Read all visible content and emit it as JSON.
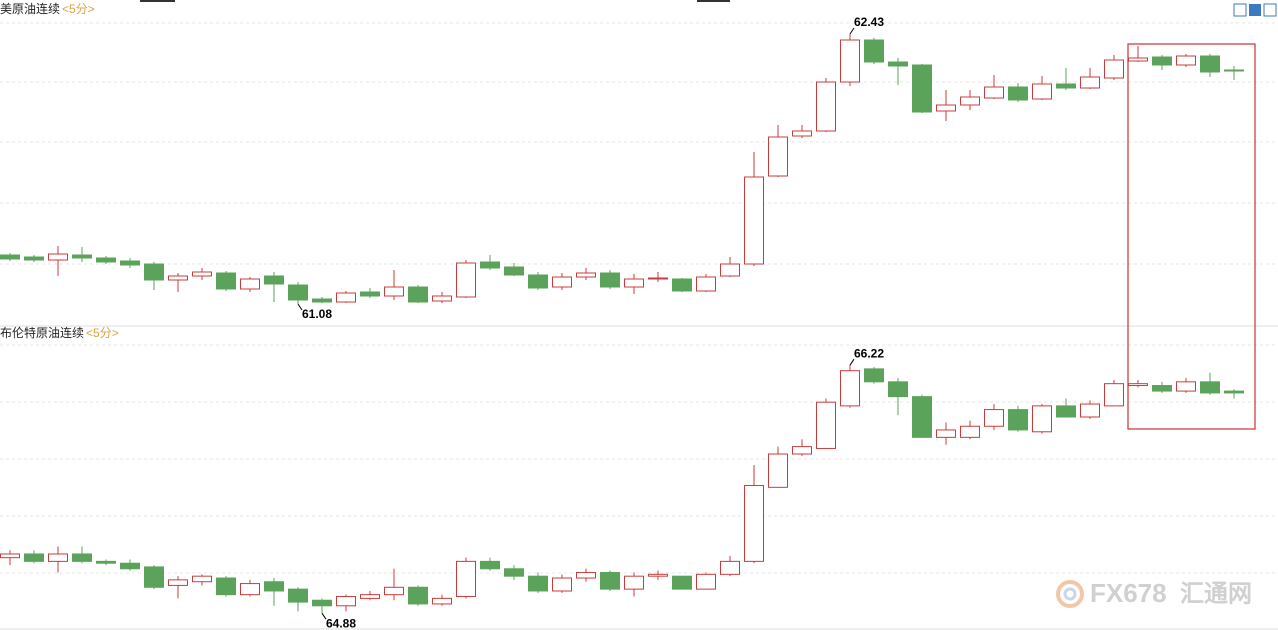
{
  "chart_data": [
    {
      "type": "candlestick",
      "title": "美原油连续",
      "period": "<5分>",
      "up_color": "#c83c3c",
      "down_color": "#5ba35b",
      "ylim": [
        60.975,
        62.6
      ],
      "high_label": 62.43,
      "low_label": 61.08,
      "open": [
        61.325,
        61.315,
        61.3,
        61.325,
        61.31,
        61.295,
        61.28,
        61.2,
        61.22,
        61.235,
        61.155,
        61.22,
        61.175,
        61.105,
        61.09,
        61.14,
        61.12,
        61.165,
        61.095,
        61.115,
        61.29,
        61.265,
        61.225,
        61.165,
        61.215,
        61.235,
        61.165,
        61.205,
        61.205,
        61.145,
        61.22,
        61.28,
        61.72,
        61.92,
        61.945,
        62.19,
        62.4,
        62.29,
        62.275,
        62.045,
        62.075,
        62.11,
        62.165,
        62.105,
        62.18,
        62.16,
        62.21,
        62.295,
        62.315,
        62.275,
        62.32,
        62.25
      ],
      "high": [
        61.335,
        61.325,
        61.37,
        61.365,
        61.32,
        61.31,
        61.29,
        61.235,
        61.26,
        61.245,
        61.215,
        61.24,
        61.19,
        61.115,
        61.145,
        61.16,
        61.25,
        61.175,
        61.14,
        61.3,
        61.325,
        61.285,
        61.24,
        61.235,
        61.26,
        61.25,
        61.23,
        61.24,
        61.21,
        61.23,
        61.315,
        61.84,
        61.975,
        61.975,
        62.21,
        62.43,
        62.41,
        62.31,
        62.28,
        62.15,
        62.15,
        62.225,
        62.185,
        62.22,
        62.26,
        62.26,
        62.325,
        62.37,
        62.325,
        62.33,
        62.33,
        62.27
      ],
      "low": [
        61.295,
        61.29,
        61.22,
        61.29,
        61.28,
        61.26,
        61.15,
        61.14,
        61.2,
        61.145,
        61.14,
        61.09,
        61.08,
        61.085,
        61.085,
        61.11,
        61.1,
        61.085,
        61.085,
        61.11,
        61.25,
        61.22,
        61.15,
        61.15,
        61.2,
        61.155,
        61.13,
        61.19,
        61.14,
        61.14,
        61.215,
        61.27,
        61.715,
        61.91,
        61.94,
        62.17,
        62.28,
        62.175,
        62.035,
        61.995,
        62.05,
        62.105,
        62.09,
        62.1,
        62.15,
        62.155,
        62.2,
        62.29,
        62.25,
        62.265,
        62.215,
        62.2
      ],
      "close": [
        61.305,
        61.3,
        61.33,
        61.31,
        61.29,
        61.275,
        61.2,
        61.22,
        61.24,
        61.155,
        61.205,
        61.18,
        61.1,
        61.09,
        61.135,
        61.12,
        61.165,
        61.09,
        61.12,
        61.285,
        61.26,
        61.225,
        61.16,
        61.215,
        61.235,
        61.165,
        61.205,
        61.21,
        61.145,
        61.215,
        61.28,
        61.715,
        61.915,
        61.945,
        62.19,
        62.4,
        62.29,
        62.27,
        62.04,
        62.075,
        62.115,
        62.165,
        62.1,
        62.18,
        62.16,
        62.215,
        62.3,
        62.31,
        62.275,
        62.32,
        62.24,
        62.245
      ]
    },
    {
      "type": "candlestick",
      "title": "布伦特原油连续",
      "period": "<5分>",
      "up_color": "#c83c3c",
      "down_color": "#5ba35b",
      "ylim": [
        64.8,
        66.41
      ],
      "high_label": 66.22,
      "low_label": 64.88,
      "open": [
        65.18,
        65.2,
        65.16,
        65.2,
        65.16,
        65.15,
        65.13,
        65.03,
        65.05,
        65.07,
        64.98,
        65.05,
        65.01,
        64.95,
        64.92,
        64.96,
        64.98,
        65.02,
        64.93,
        64.97,
        65.16,
        65.12,
        65.08,
        65.0,
        65.07,
        65.1,
        65.01,
        65.08,
        65.08,
        65.01,
        65.09,
        65.16,
        65.56,
        65.74,
        65.77,
        66.0,
        66.2,
        66.13,
        66.05,
        65.83,
        65.83,
        65.89,
        65.98,
        65.86,
        66.0,
        65.94,
        66.0,
        66.11,
        66.11,
        66.08,
        66.13,
        66.08
      ],
      "high": [
        65.22,
        65.22,
        65.24,
        65.24,
        65.17,
        65.17,
        65.14,
        65.08,
        65.09,
        65.08,
        65.06,
        65.07,
        65.02,
        64.96,
        64.98,
        65.0,
        65.12,
        65.03,
        64.98,
        65.18,
        65.18,
        65.14,
        65.1,
        65.09,
        65.12,
        65.11,
        65.1,
        65.11,
        65.08,
        65.1,
        65.19,
        65.68,
        65.78,
        65.82,
        66.04,
        66.22,
        66.21,
        66.15,
        66.06,
        65.91,
        65.92,
        66.01,
        66.0,
        66.01,
        66.04,
        66.03,
        66.14,
        66.14,
        66.13,
        66.15,
        66.18,
        66.09
      ],
      "low": [
        65.14,
        65.15,
        65.1,
        65.15,
        65.14,
        65.11,
        65.01,
        64.96,
        65.03,
        64.97,
        64.97,
        64.92,
        64.89,
        64.88,
        64.89,
        64.95,
        64.95,
        64.92,
        64.92,
        64.96,
        65.11,
        65.06,
        64.99,
        64.99,
        65.05,
        65.0,
        64.97,
        65.06,
        65.01,
        65.01,
        65.08,
        65.15,
        65.56,
        65.73,
        65.77,
        65.99,
        66.12,
        65.95,
        65.83,
        65.79,
        65.82,
        65.87,
        65.86,
        65.85,
        65.94,
        65.93,
        66.0,
        66.1,
        66.07,
        66.07,
        66.06,
        66.04
      ],
      "close": [
        65.2,
        65.16,
        65.2,
        65.16,
        65.15,
        65.12,
        65.02,
        65.06,
        65.08,
        64.98,
        65.04,
        65.0,
        64.94,
        64.92,
        64.97,
        64.98,
        65.02,
        64.93,
        64.96,
        65.16,
        65.12,
        65.08,
        65.0,
        65.07,
        65.1,
        65.01,
        65.08,
        65.09,
        65.01,
        65.09,
        65.16,
        65.57,
        65.74,
        65.78,
        66.02,
        66.19,
        66.13,
        66.05,
        65.83,
        65.87,
        65.89,
        65.98,
        65.87,
        66.0,
        65.94,
        66.01,
        66.12,
        66.12,
        66.08,
        66.13,
        66.07,
        66.07
      ]
    }
  ],
  "watermark": {
    "brand": "FX678",
    "name": "汇通网"
  }
}
